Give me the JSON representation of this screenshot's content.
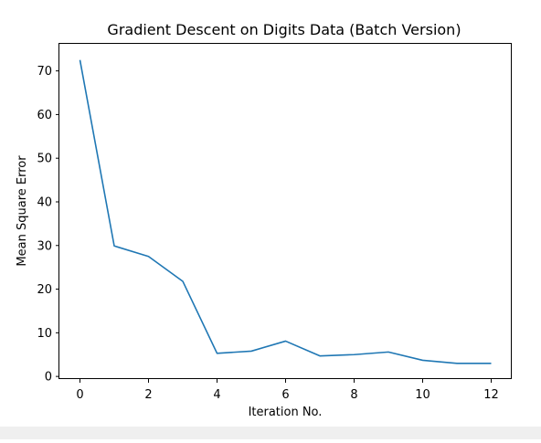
{
  "chart_data": {
    "type": "line",
    "title": "Gradient Descent on Digits Data (Batch Version)",
    "xlabel": "Iteration No.",
    "ylabel": "Mean Square Error",
    "x": [
      0,
      1,
      2,
      3,
      4,
      5,
      6,
      7,
      8,
      9,
      10,
      11,
      12
    ],
    "series": [
      {
        "values": [
          72.5,
          29.9,
          27.5,
          21.8,
          5.3,
          5.8,
          8.1,
          4.7,
          5.0,
          5.6,
          3.7,
          3.0,
          3.0
        ],
        "color": "#1f77b4"
      }
    ],
    "xlim": [
      -0.6,
      12.6
    ],
    "ylim": [
      -0.6,
      76.2
    ],
    "xticks": [
      0,
      2,
      4,
      6,
      8,
      10,
      12
    ],
    "yticks": [
      0,
      10,
      20,
      30,
      40,
      50,
      60,
      70
    ],
    "grid": false
  }
}
